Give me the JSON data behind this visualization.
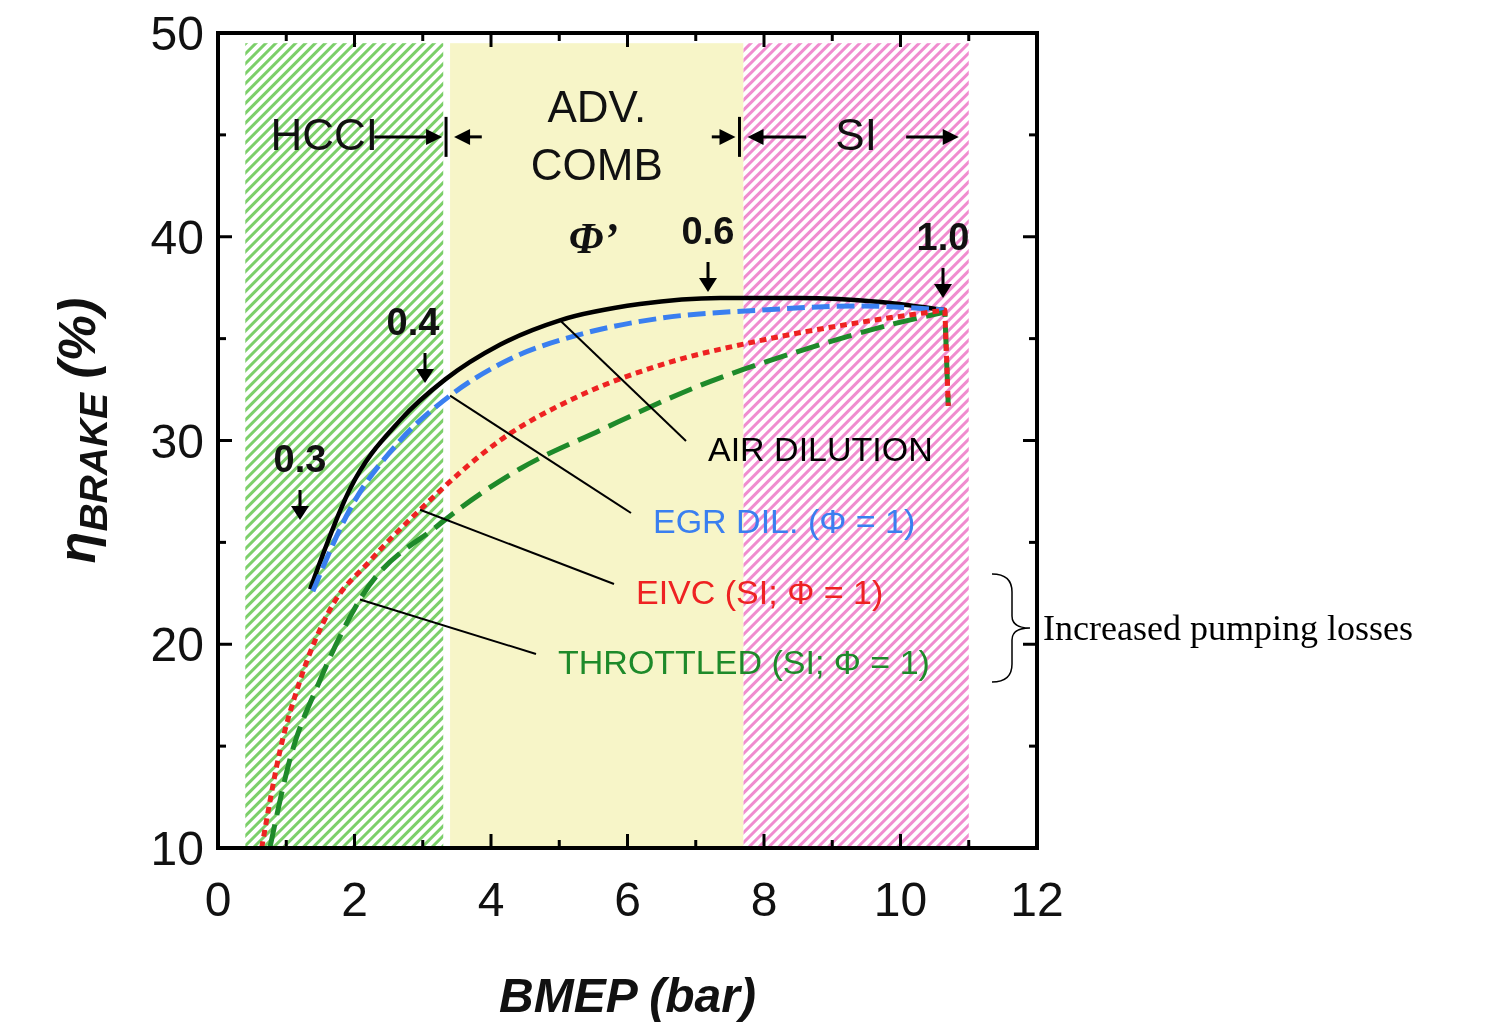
{
  "chart_data": {
    "type": "line",
    "xlabel": "BMEP (bar)",
    "ylabel": "η$_{BRAKE}$ (%)",
    "xlim": [
      0,
      12
    ],
    "ylim": [
      10,
      50
    ],
    "xticks": [
      0,
      {
        "value": 1,
        "label": null
      },
      2,
      {
        "value": 3,
        "label": null
      },
      4,
      {
        "value": 5,
        "label": null
      },
      6,
      {
        "value": 7,
        "label": null
      },
      8,
      {
        "value": 9,
        "label": null
      },
      10,
      {
        "value": 11,
        "label": null
      },
      12
    ],
    "yticks": [
      10,
      {
        "value": 15,
        "label": null
      },
      20,
      {
        "value": 25,
        "label": null
      },
      30,
      {
        "value": 35,
        "label": null
      },
      40,
      {
        "value": 45,
        "label": null
      },
      50
    ],
    "grid": false,
    "bands": [
      {
        "axis": "x",
        "from": 0.4,
        "to": 3.3,
        "label": "HCCI",
        "color": "#7ccf6a"
      },
      {
        "axis": "x",
        "from": 3.4,
        "to": 7.7,
        "label": "ADV. COMB",
        "color": "#f7f5c8"
      },
      {
        "axis": "x",
        "from": 7.7,
        "to": 11.0,
        "label": "SI",
        "color": "#f08ccf"
      }
    ],
    "series": [
      {
        "name": "AIR DILUTION",
        "color": "#000000",
        "line_style": "solid",
        "x": [
          1.35,
          1.93,
          2.67,
          3.33,
          4.13,
          5.01,
          6.18,
          7.36,
          8.53,
          9.7,
          10.65
        ],
        "values": [
          22.7,
          27.6,
          31.0,
          33.0,
          34.7,
          35.9,
          36.7,
          37.0,
          37.0,
          36.8,
          36.4
        ]
      },
      {
        "name": "EGR DIL. (Φ = 1)",
        "color": "#3a7ff0",
        "line_style": "dashed",
        "x": [
          1.39,
          1.93,
          2.67,
          3.4,
          4.28,
          5.3,
          6.48,
          7.94,
          9.41,
          10.65
        ],
        "values": [
          22.6,
          26.6,
          30.0,
          32.2,
          34.0,
          35.2,
          36.0,
          36.4,
          36.6,
          36.4
        ]
      },
      {
        "name": "EIVC (SI; Φ = 1)",
        "color": "#ee2222",
        "line_style": "dotted",
        "x": [
          0.64,
          0.91,
          1.2,
          1.64,
          2.23,
          2.96,
          4.13,
          5.3,
          6.48,
          7.94,
          9.41,
          10.65,
          10.7
        ],
        "values": [
          10.0,
          14.8,
          18.2,
          21.7,
          24.1,
          26.6,
          30.0,
          32.2,
          33.7,
          34.9,
          35.8,
          36.4,
          31.7
        ]
      },
      {
        "name": "THROTTLED (SI; Φ = 1)",
        "color": "#1e8a2a",
        "line_style": "dashed",
        "x": [
          0.76,
          1.05,
          1.49,
          2.08,
          3.25,
          4.42,
          5.6,
          7.06,
          8.53,
          9.99,
          10.65,
          10.7
        ],
        "values": [
          10.0,
          14.3,
          18.2,
          22.2,
          25.9,
          28.6,
          30.5,
          32.7,
          34.4,
          35.8,
          36.3,
          31.7
        ]
      }
    ],
    "annotations": [
      "Φ’",
      "0.3",
      "0.4",
      "0.6",
      "1.0",
      "Increased pumping losses"
    ]
  }
}
